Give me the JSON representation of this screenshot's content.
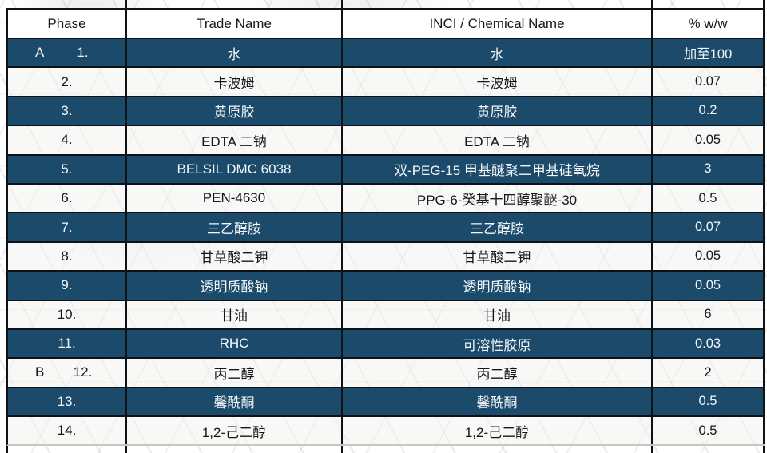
{
  "style": {
    "dark_row_color": "#1B4A6A",
    "grid_line_color": "#0D1219",
    "light_row_color": "#F3F2F0",
    "header_bg_color": "#FFFFFF"
  },
  "table": {
    "columns": [
      "Phase",
      "Trade Name",
      "INCI / Chemical Name",
      "% w/w"
    ],
    "rows": [
      {
        "phase": "A",
        "num": "1.",
        "trade": "水",
        "inci": "水",
        "pct": "加至100",
        "dark": true
      },
      {
        "phase": "",
        "num": "2.",
        "trade": "卡波姆",
        "inci": "卡波姆",
        "pct": "0.07",
        "dark": false
      },
      {
        "phase": "",
        "num": "3.",
        "trade": "黄原胶",
        "inci": "黄原胶",
        "pct": "0.2",
        "dark": true
      },
      {
        "phase": "",
        "num": "4.",
        "trade": "EDTA 二钠",
        "inci": "EDTA 二钠",
        "pct": "0.05",
        "dark": false
      },
      {
        "phase": "",
        "num": "5.",
        "trade": "BELSIL DMC 6038",
        "inci": "双-PEG-15 甲基醚聚二甲基硅氧烷",
        "pct": "3",
        "dark": true
      },
      {
        "phase": "",
        "num": "6.",
        "trade": "PEN-4630",
        "inci": "PPG-6-癸基十四醇聚醚-30",
        "pct": "0.5",
        "dark": false
      },
      {
        "phase": "",
        "num": "7.",
        "trade": "三乙醇胺",
        "inci": "三乙醇胺",
        "pct": "0.07",
        "dark": true
      },
      {
        "phase": "",
        "num": "8.",
        "trade": "甘草酸二钾",
        "inci": "甘草酸二钾",
        "pct": "0.05",
        "dark": false
      },
      {
        "phase": "",
        "num": "9.",
        "trade": "透明质酸钠",
        "inci": "透明质酸钠",
        "pct": "0.05",
        "dark": true
      },
      {
        "phase": "",
        "num": "10.",
        "trade": "甘油",
        "inci": "甘油",
        "pct": "6",
        "dark": false
      },
      {
        "phase": "",
        "num": "11.",
        "trade": "RHC",
        "inci": "可溶性胶原",
        "pct": "0.03",
        "dark": true
      },
      {
        "phase": "B",
        "num": "12.",
        "trade": "丙二醇",
        "inci": "丙二醇",
        "pct": "2",
        "dark": false
      },
      {
        "phase": "",
        "num": "13.",
        "trade": "馨酰酮",
        "inci": "馨酰酮",
        "pct": "0.5",
        "dark": true
      },
      {
        "phase": "",
        "num": "14.",
        "trade": "1,2-己二醇",
        "inci": "1,2-己二醇",
        "pct": "0.5",
        "dark": false
      }
    ]
  }
}
